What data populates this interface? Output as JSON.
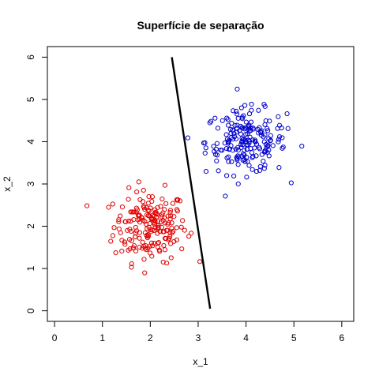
{
  "chart_data": {
    "type": "scatter",
    "title": "Superfície de separação",
    "xlabel": "x_1",
    "ylabel": "x_2",
    "xlim": [
      -0.15,
      6.25
    ],
    "ylim": [
      -0.25,
      6.25
    ],
    "xticks": [
      "0",
      "1",
      "2",
      "3",
      "4",
      "5",
      "6"
    ],
    "yticks": [
      "0",
      "1",
      "2",
      "3",
      "4",
      "5",
      "6"
    ],
    "grid": false,
    "marker": "open-circle",
    "series": [
      {
        "color": "#e00000",
        "cluster": {
          "center": [
            2.0,
            2.0
          ],
          "spread": [
            0.38,
            0.42
          ],
          "count": 200
        }
      },
      {
        "color": "#0000cc",
        "cluster": {
          "center": [
            4.0,
            4.0
          ],
          "spread": [
            0.42,
            0.38
          ],
          "count": 200
        }
      }
    ],
    "separation_line": {
      "color": "#000000",
      "points": [
        [
          2.45,
          6.0
        ],
        [
          3.25,
          0.05
        ]
      ]
    }
  }
}
